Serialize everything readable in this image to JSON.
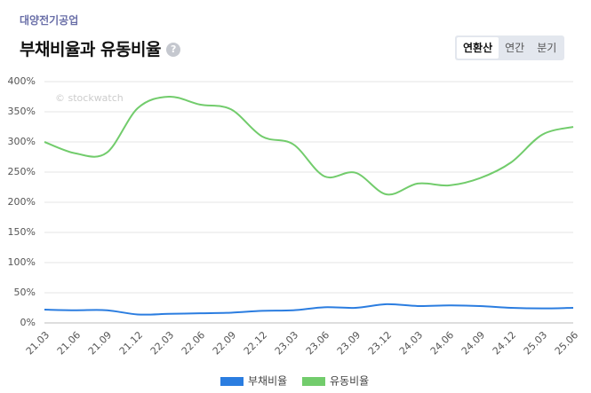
{
  "header": {
    "company": "대양전기공업",
    "title": "부채비율과 유동비율",
    "help_icon": "?"
  },
  "tabs": [
    "연환산",
    "연간",
    "분기"
  ],
  "chart_data": {
    "type": "line",
    "watermark": "© stockwatch",
    "categories": [
      "21.03",
      "21.06",
      "21.09",
      "21.12",
      "22.03",
      "22.06",
      "22.09",
      "22.12",
      "23.03",
      "23.06",
      "23.09",
      "23.12",
      "24.03",
      "24.06",
      "24.09",
      "24.12",
      "25.03",
      "25.06"
    ],
    "series": [
      {
        "name": "부채비율",
        "color": "#2b7de0",
        "values": [
          22,
          21,
          21,
          14,
          15,
          16,
          17,
          20,
          21,
          26,
          25,
          31,
          28,
          29,
          28,
          25,
          24,
          25
        ]
      },
      {
        "name": "유동비율",
        "color": "#72cc6c",
        "values": [
          300,
          281,
          282,
          356,
          375,
          362,
          354,
          309,
          296,
          243,
          249,
          213,
          231,
          228,
          240,
          266,
          312,
          325
        ]
      }
    ],
    "ylim": [
      0,
      400
    ],
    "yticks": [
      {
        "value": 0,
        "label": "0%"
      },
      {
        "value": 50,
        "label": "50%"
      },
      {
        "value": 100,
        "label": "100%"
      },
      {
        "value": 150,
        "label": "150%"
      },
      {
        "value": 200,
        "label": "200%"
      },
      {
        "value": 250,
        "label": "250%"
      },
      {
        "value": 300,
        "label": "300%"
      },
      {
        "value": 350,
        "label": "350%"
      },
      {
        "value": 400,
        "label": "400%"
      }
    ],
    "grid": true
  }
}
